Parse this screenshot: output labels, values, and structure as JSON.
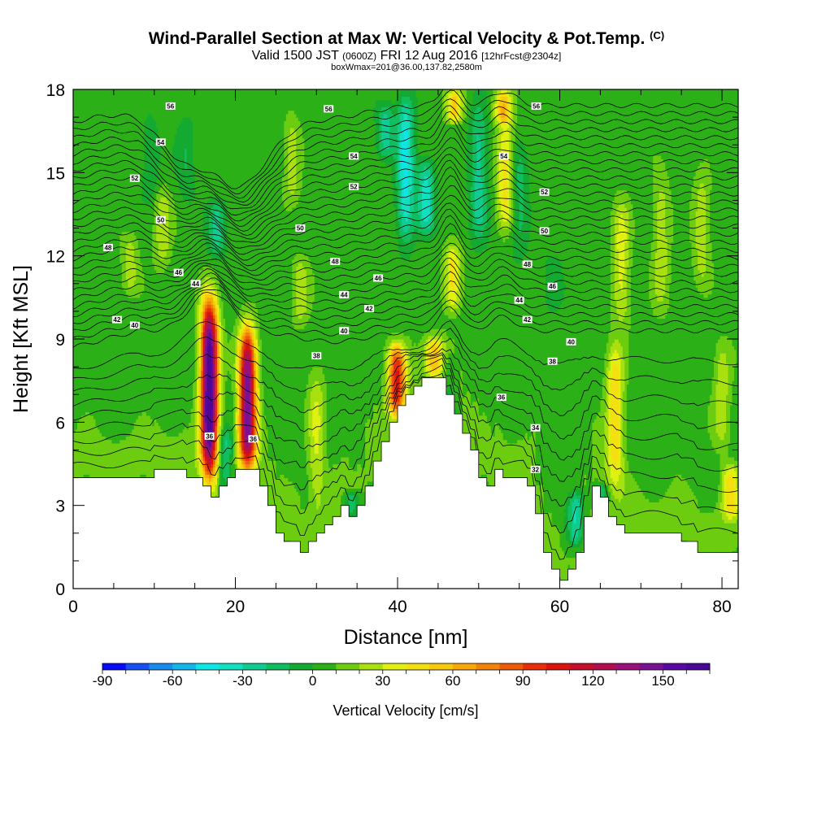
{
  "titles": {
    "main": "Wind-Parallel Section at Max W: Vertical Velocity & Pot.Temp.",
    "copyright": "(C)",
    "valid_prefix": "Valid 1500 JST",
    "valid_z": "(0600Z)",
    "valid_date": "FRI 12 Aug 2016",
    "forecast": "[12hrFcst@2304z]",
    "box": "boxWmax=201@36.00,137.82,2580m"
  },
  "chart_data": {
    "type": "heatmap",
    "xlabel": "Distance [nm]",
    "ylabel": "Height [Kft MSL]",
    "xlim": [
      0,
      82
    ],
    "ylim": [
      0,
      18
    ],
    "x_ticks": [
      "0",
      "20",
      "40",
      "60",
      "80"
    ],
    "y_ticks": [
      "0",
      "3",
      "6",
      "9",
      "12",
      "15",
      "18"
    ],
    "colorbar": {
      "label": "Vertical Velocity [cm/s]",
      "min": -90,
      "max": 170,
      "step": 10,
      "tick_labels": [
        "-90",
        "-60",
        "-30",
        "0",
        "30",
        "60",
        "90",
        "120",
        "150"
      ],
      "colors": [
        "#0a0cf8",
        "#1550f0",
        "#1a8cf0",
        "#12b6e8",
        "#0ee6e6",
        "#12e0c0",
        "#10cc90",
        "#10be60",
        "#14aa32",
        "#2cb018",
        "#6ccc10",
        "#a8e010",
        "#e0f010",
        "#f4e010",
        "#f8c80c",
        "#f8a808",
        "#f08408",
        "#ec5c08",
        "#e83008",
        "#d8140c",
        "#c4102c",
        "#b01050",
        "#98107a",
        "#7a1094",
        "#5a0aa0",
        "#4a0896"
      ]
    },
    "background_w": 5,
    "updrafts": [
      {
        "x": 16.8,
        "ybot": 4.1,
        "ytop": 10.4,
        "peak": 170
      },
      {
        "x": 21.5,
        "ybot": 4.3,
        "ytop": 9.4,
        "peak": 140
      },
      {
        "x": 39.9,
        "ybot": 6.2,
        "ytop": 8.8,
        "peak": 90
      },
      {
        "x": 44.5,
        "ybot": 7.6,
        "ytop": 9.1,
        "peak": 45
      },
      {
        "x": 46.8,
        "ybot": 10.0,
        "ytop": 12.4,
        "peak": 40
      },
      {
        "x": 30.0,
        "ybot": 3.0,
        "ytop": 8.0,
        "peak": 25
      },
      {
        "x": 66.8,
        "ybot": 3.8,
        "ytop": 8.8,
        "peak": 45
      },
      {
        "x": 67.6,
        "ybot": 9.5,
        "ytop": 14.0,
        "peak": 30
      },
      {
        "x": 81.0,
        "ybot": 2.5,
        "ytop": 4.5,
        "peak": 40
      },
      {
        "x": 47.0,
        "ybot": 16.8,
        "ytop": 18.0,
        "peak": 45
      },
      {
        "x": 53.0,
        "ybot": 16.8,
        "ytop": 18.0,
        "peak": 50
      },
      {
        "x": 53.3,
        "ybot": 13.0,
        "ytop": 17.0,
        "peak": 40
      },
      {
        "x": 11.0,
        "ybot": 11.5,
        "ytop": 14.5,
        "peak": 22
      },
      {
        "x": 27.0,
        "ybot": 14.0,
        "ytop": 17.0,
        "peak": 22
      },
      {
        "x": 28.0,
        "ybot": 9.5,
        "ytop": 12.0,
        "peak": 22
      },
      {
        "x": 7.0,
        "ybot": 10.6,
        "ytop": 12.8,
        "peak": 20
      },
      {
        "x": 72.5,
        "ybot": 10.0,
        "ytop": 15.0,
        "peak": 22
      },
      {
        "x": 77.5,
        "ybot": 11.0,
        "ytop": 15.0,
        "peak": 22
      },
      {
        "x": 80.0,
        "ybot": 5.0,
        "ytop": 9.0,
        "peak": 22
      }
    ],
    "downdrafts": [
      {
        "x": 17.8,
        "ybot": 12.0,
        "ytop": 14.0,
        "peak": -30
      },
      {
        "x": 18.8,
        "ybot": 3.5,
        "ytop": 5.8,
        "peak": -35
      },
      {
        "x": 41.0,
        "ybot": 12.5,
        "ytop": 17.8,
        "peak": -48
      },
      {
        "x": 43.5,
        "ybot": 12.8,
        "ytop": 15.5,
        "peak": -40
      },
      {
        "x": 38.5,
        "ybot": 15.5,
        "ytop": 17.5,
        "peak": -30
      },
      {
        "x": 50.0,
        "ybot": 12.5,
        "ytop": 17.5,
        "peak": -30
      },
      {
        "x": 55.0,
        "ybot": 12.0,
        "ytop": 16.0,
        "peak": -20
      },
      {
        "x": 34.3,
        "ybot": 2.6,
        "ytop": 3.6,
        "peak": -30
      },
      {
        "x": 62.0,
        "ybot": 1.5,
        "ytop": 3.5,
        "peak": -40
      },
      {
        "x": 65.0,
        "ybot": 3.0,
        "ytop": 3.8,
        "peak": -30
      },
      {
        "x": 46.5,
        "ybot": 5.5,
        "ytop": 8.5,
        "peak": -15
      },
      {
        "x": 59.0,
        "ybot": 10.0,
        "ytop": 12.0,
        "peak": -15
      },
      {
        "x": 9.5,
        "ybot": 14.0,
        "ytop": 17.0,
        "peak": -15
      },
      {
        "x": 14.0,
        "ybot": 14.0,
        "ytop": 17.0,
        "peak": -15
      }
    ],
    "terrain": [
      [
        0,
        4.0
      ],
      [
        10,
        4.0
      ],
      [
        10,
        4.3
      ],
      [
        14,
        4.3
      ],
      [
        14,
        4.0
      ],
      [
        16,
        4.0
      ],
      [
        16,
        3.7
      ],
      [
        17,
        3.7
      ],
      [
        17,
        3.3
      ],
      [
        18,
        3.3
      ],
      [
        18,
        3.7
      ],
      [
        19,
        3.7
      ],
      [
        19,
        4.0
      ],
      [
        20,
        4.0
      ],
      [
        20,
        4.3
      ],
      [
        23,
        4.3
      ],
      [
        23,
        3.7
      ],
      [
        24,
        3.7
      ],
      [
        24,
        3.0
      ],
      [
        25,
        3.0
      ],
      [
        25,
        2.0
      ],
      [
        26,
        2.0
      ],
      [
        26,
        1.7
      ],
      [
        28,
        1.7
      ],
      [
        28,
        1.3
      ],
      [
        29,
        1.3
      ],
      [
        29,
        1.7
      ],
      [
        30,
        1.7
      ],
      [
        30,
        2.0
      ],
      [
        31,
        2.0
      ],
      [
        31,
        2.3
      ],
      [
        32,
        2.3
      ],
      [
        32,
        2.6
      ],
      [
        33,
        2.6
      ],
      [
        33,
        3.0
      ],
      [
        34,
        3.0
      ],
      [
        34,
        2.6
      ],
      [
        35,
        2.6
      ],
      [
        35,
        3.0
      ],
      [
        36,
        3.0
      ],
      [
        36,
        3.7
      ],
      [
        37,
        3.7
      ],
      [
        37,
        4.6
      ],
      [
        38,
        4.6
      ],
      [
        38,
        5.3
      ],
      [
        39,
        5.3
      ],
      [
        39,
        6.0
      ],
      [
        40,
        6.0
      ],
      [
        40,
        6.6
      ],
      [
        41,
        6.6
      ],
      [
        41,
        7.0
      ],
      [
        42,
        7.0
      ],
      [
        42,
        7.3
      ],
      [
        43,
        7.3
      ],
      [
        43,
        7.6
      ],
      [
        46,
        7.6
      ],
      [
        46,
        7.0
      ],
      [
        47,
        7.0
      ],
      [
        47,
        6.3
      ],
      [
        48,
        6.3
      ],
      [
        48,
        5.6
      ],
      [
        49,
        5.6
      ],
      [
        49,
        5.0
      ],
      [
        50,
        5.0
      ],
      [
        50,
        4.0
      ],
      [
        51,
        4.0
      ],
      [
        51,
        3.7
      ],
      [
        52,
        3.7
      ],
      [
        52,
        4.3
      ],
      [
        53,
        4.3
      ],
      [
        53,
        4.0
      ],
      [
        56,
        4.0
      ],
      [
        56,
        3.7
      ],
      [
        57,
        3.7
      ],
      [
        57,
        2.7
      ],
      [
        58,
        2.7
      ],
      [
        58,
        1.3
      ],
      [
        59,
        1.3
      ],
      [
        59,
        0.7
      ],
      [
        60,
        0.7
      ],
      [
        60,
        0.3
      ],
      [
        61,
        0.3
      ],
      [
        61,
        0.7
      ],
      [
        62,
        0.7
      ],
      [
        62,
        1.3
      ],
      [
        63,
        1.3
      ],
      [
        63,
        2.6
      ],
      [
        64,
        2.6
      ],
      [
        64,
        3.7
      ],
      [
        65,
        3.7
      ],
      [
        65,
        3.3
      ],
      [
        66,
        3.3
      ],
      [
        66,
        2.6
      ],
      [
        67,
        2.6
      ],
      [
        67,
        2.3
      ],
      [
        68,
        2.3
      ],
      [
        68,
        2.0
      ],
      [
        75,
        2.0
      ],
      [
        75,
        1.7
      ],
      [
        77,
        1.7
      ],
      [
        77,
        1.3
      ],
      [
        82,
        1.3
      ]
    ],
    "isentropes": {
      "start": 32,
      "end": 358,
      "step": 1,
      "unit": "K"
    },
    "contour_labels": [
      "32",
      "34",
      "36",
      "38",
      "40",
      "42",
      "44",
      "46",
      "48",
      "50",
      "52",
      "54",
      "56"
    ],
    "contour_label_positions": [
      {
        "label": "56",
        "x": 12.0,
        "y": 17.4
      },
      {
        "label": "56",
        "x": 31.5,
        "y": 17.3
      },
      {
        "label": "56",
        "x": 57.1,
        "y": 17.4
      },
      {
        "label": "54",
        "x": 10.8,
        "y": 16.1
      },
      {
        "label": "54",
        "x": 34.6,
        "y": 15.6
      },
      {
        "label": "54",
        "x": 53.1,
        "y": 15.6
      },
      {
        "label": "52",
        "x": 7.6,
        "y": 14.8
      },
      {
        "label": "52",
        "x": 34.6,
        "y": 14.5
      },
      {
        "label": "52",
        "x": 58.1,
        "y": 14.3
      },
      {
        "label": "50",
        "x": 10.8,
        "y": 13.3
      },
      {
        "label": "50",
        "x": 28.0,
        "y": 13.0
      },
      {
        "label": "50",
        "x": 58.1,
        "y": 12.9
      },
      {
        "label": "48",
        "x": 4.3,
        "y": 12.3
      },
      {
        "label": "48",
        "x": 32.3,
        "y": 11.8
      },
      {
        "label": "48",
        "x": 56.0,
        "y": 11.7
      },
      {
        "label": "46",
        "x": 13.0,
        "y": 11.4
      },
      {
        "label": "46",
        "x": 37.6,
        "y": 11.2
      },
      {
        "label": "46",
        "x": 59.1,
        "y": 10.9
      },
      {
        "label": "44",
        "x": 15.1,
        "y": 11.0
      },
      {
        "label": "44",
        "x": 33.4,
        "y": 10.6
      },
      {
        "label": "44",
        "x": 55.0,
        "y": 10.4
      },
      {
        "label": "42",
        "x": 5.4,
        "y": 9.7
      },
      {
        "label": "42",
        "x": 36.5,
        "y": 10.1
      },
      {
        "label": "42",
        "x": 56.0,
        "y": 9.7
      },
      {
        "label": "40",
        "x": 7.6,
        "y": 9.5
      },
      {
        "label": "40",
        "x": 33.4,
        "y": 9.3
      },
      {
        "label": "40",
        "x": 61.4,
        "y": 8.9
      },
      {
        "label": "38",
        "x": 30.0,
        "y": 8.4
      },
      {
        "label": "38",
        "x": 59.1,
        "y": 8.2
      },
      {
        "label": "36",
        "x": 16.8,
        "y": 5.5
      },
      {
        "label": "36",
        "x": 22.2,
        "y": 5.4
      },
      {
        "label": "36",
        "x": 52.8,
        "y": 6.9
      },
      {
        "label": "34",
        "x": 57.0,
        "y": 5.8
      },
      {
        "label": "32",
        "x": 57.0,
        "y": 4.3
      }
    ]
  }
}
